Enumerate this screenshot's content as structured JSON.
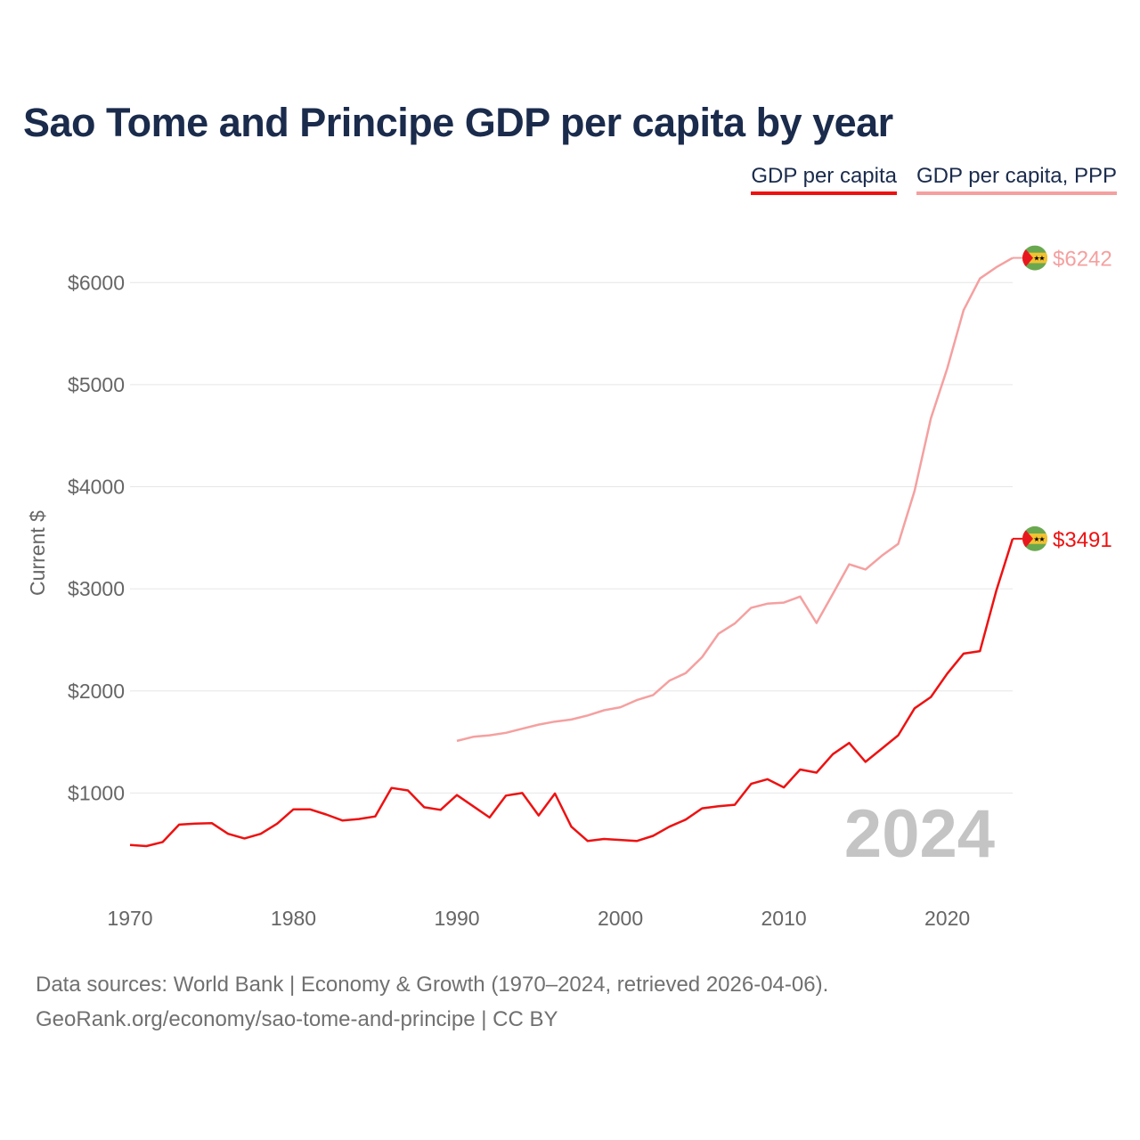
{
  "chart_data": {
    "type": "line",
    "title": "Sao Tome and Principe GDP per capita by year",
    "ylabel": "Current $",
    "xlabel": "",
    "xlim": [
      1970,
      2024
    ],
    "ylim": [
      0,
      6500
    ],
    "x_ticks": [
      1970,
      1980,
      1990,
      2000,
      2010,
      2020
    ],
    "x_tick_labels": [
      "1970",
      "1980",
      "1990",
      "2000",
      "2010",
      "2020"
    ],
    "y_ticks": [
      1000,
      2000,
      3000,
      4000,
      5000,
      6000
    ],
    "y_tick_labels": [
      "$1000",
      "$2000",
      "$3000",
      "$4000",
      "$5000",
      "$6000"
    ],
    "year_watermark": "2024",
    "grid": true,
    "legend_position": "top-right",
    "series": [
      {
        "name": "GDP per capita",
        "color": "#ee1111",
        "end_label": "$3491",
        "x": [
          1970,
          1971,
          1972,
          1973,
          1974,
          1975,
          1976,
          1977,
          1978,
          1979,
          1980,
          1981,
          1982,
          1983,
          1984,
          1985,
          1986,
          1987,
          1988,
          1989,
          1990,
          1991,
          1992,
          1993,
          1994,
          1995,
          1996,
          1997,
          1998,
          1999,
          2000,
          2001,
          2002,
          2003,
          2004,
          2005,
          2006,
          2007,
          2008,
          2009,
          2010,
          2011,
          2012,
          2013,
          2014,
          2015,
          2016,
          2017,
          2018,
          2019,
          2020,
          2021,
          2022,
          2023,
          2024
        ],
        "values": [
          490,
          480,
          520,
          690,
          700,
          705,
          600,
          555,
          600,
          700,
          840,
          840,
          790,
          730,
          745,
          770,
          1050,
          1025,
          860,
          835,
          980,
          870,
          760,
          975,
          1000,
          780,
          995,
          670,
          530,
          550,
          540,
          530,
          580,
          670,
          740,
          850,
          870,
          885,
          1090,
          1135,
          1055,
          1230,
          1200,
          1380,
          1490,
          1305,
          1435,
          1565,
          1830,
          1940,
          2170,
          2365,
          2390,
          2980,
          3491
        ]
      },
      {
        "name": "GDP per capita, PPP",
        "color": "#f5a0a0",
        "end_label": "$6242",
        "x": [
          1990,
          1991,
          1992,
          1993,
          1994,
          1995,
          1996,
          1997,
          1998,
          1999,
          2000,
          2001,
          2002,
          2003,
          2004,
          2005,
          2006,
          2007,
          2008,
          2009,
          2010,
          2011,
          2012,
          2013,
          2014,
          2015,
          2016,
          2017,
          2018,
          2019,
          2020,
          2021,
          2022,
          2023,
          2024
        ],
        "values": [
          1510,
          1550,
          1565,
          1590,
          1630,
          1670,
          1700,
          1720,
          1760,
          1810,
          1840,
          1910,
          1960,
          2100,
          2175,
          2330,
          2560,
          2660,
          2815,
          2855,
          2865,
          2925,
          2665,
          2950,
          3240,
          3190,
          3325,
          3440,
          3960,
          4670,
          5160,
          5730,
          6040,
          6150,
          6242
        ]
      }
    ]
  },
  "legend": {
    "items": [
      "GDP per capita",
      "GDP per capita, PPP"
    ]
  },
  "source": {
    "line1": "Data sources: World Bank | Economy & Growth (1970–2024, retrieved 2026-04-06).",
    "line2": "GeoRank.org/economy/sao-tome-and-principe | CC BY"
  },
  "flag": {
    "icon": "sao-tome-flag-icon",
    "colors": {
      "green": "#6aa84f",
      "yellow": "#f1c232",
      "red": "#e8171f",
      "star": "#000000"
    }
  }
}
